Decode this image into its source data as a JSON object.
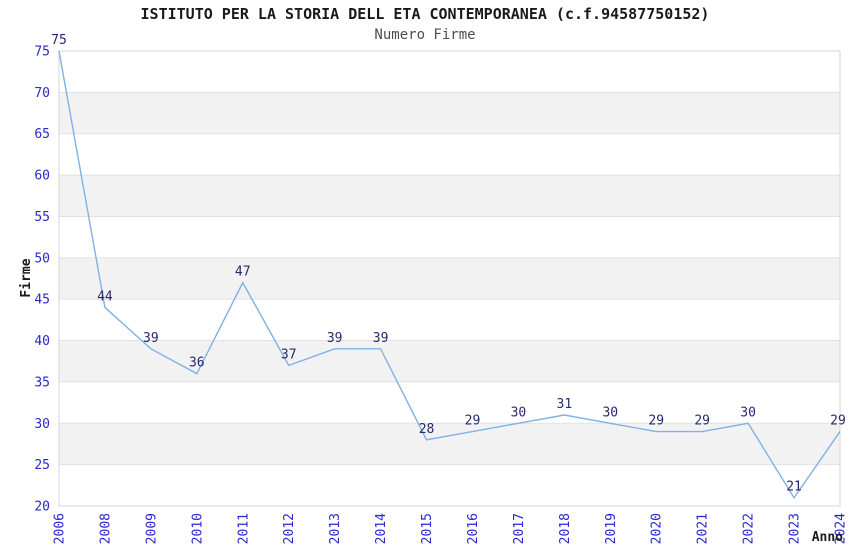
{
  "chart_data": {
    "type": "line",
    "title": "ISTITUTO PER LA STORIA DELL ETA CONTEMPORANEA (c.f.94587750152)",
    "subtitle": "Numero Firme",
    "xlabel": "Anno",
    "ylabel": "Firme",
    "categories": [
      "2006",
      "2008",
      "2009",
      "2010",
      "2011",
      "2012",
      "2013",
      "2014",
      "2015",
      "2016",
      "2017",
      "2018",
      "2019",
      "2020",
      "2021",
      "2022",
      "2023",
      "2024"
    ],
    "values": [
      75,
      44,
      39,
      36,
      47,
      37,
      39,
      39,
      28,
      29,
      30,
      31,
      30,
      29,
      29,
      30,
      21,
      29
    ],
    "point_labels": [
      "75",
      "44",
      "39",
      "36",
      "47",
      "37",
      "39",
      "39",
      "28",
      "29",
      "30",
      "31",
      "30",
      "29",
      "29",
      "30",
      "21",
      "29"
    ],
    "ylim": [
      20,
      75
    ],
    "ytick_step": 5,
    "y_ticks": [
      20,
      25,
      30,
      35,
      40,
      45,
      50,
      55,
      60,
      65,
      70,
      75
    ],
    "legend_position": "none",
    "grid": "horizontal-gridlines-with-alternating-bands",
    "colors": {
      "line": "#7fb2e6",
      "point_label": "#28286e",
      "tick_label": "#2828cd",
      "band_fill": "#f2f2f2",
      "gridline": "#e2e2e2",
      "plot_border": "#d4d4d4",
      "title": "#1a1a1a",
      "subtitle": "#4d4d4d",
      "axis_label": "#1a1a1a",
      "background": "#ffffff"
    }
  }
}
